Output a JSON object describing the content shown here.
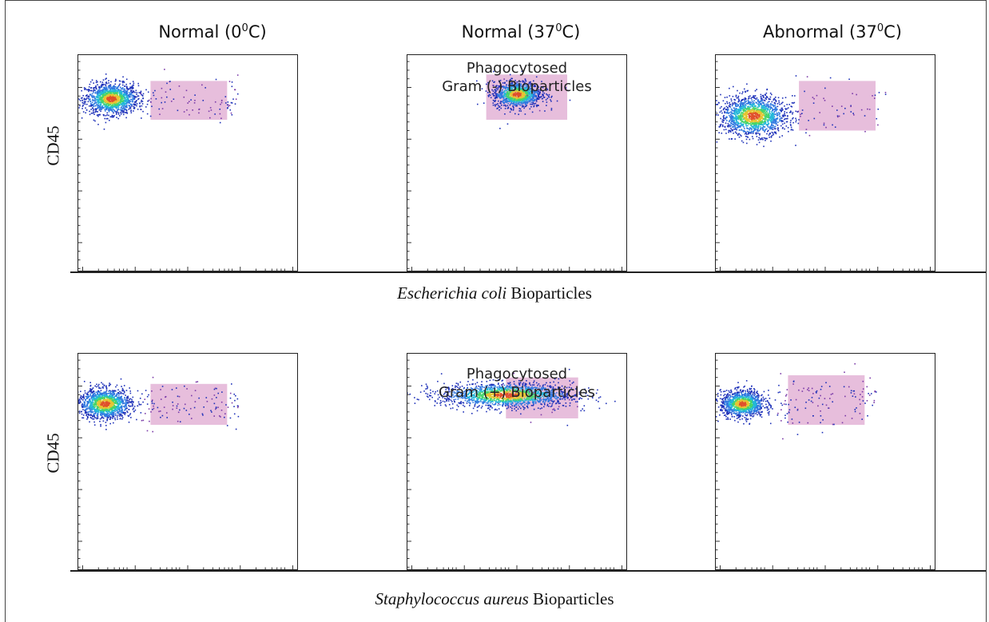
{
  "columns": [
    {
      "label": "Normal (0",
      "sup": "0",
      "tail": "C)"
    },
    {
      "label": "Normal (37",
      "sup": "0",
      "tail": "C)"
    },
    {
      "label": "Abnormal (37",
      "sup": "0",
      "tail": "C)"
    }
  ],
  "y_axis_label": "CD45",
  "rows": [
    {
      "x_label_italic": "Escherichia coli",
      "x_label_plain": " Bioparticles",
      "annotation_line1": "Phagocytosed",
      "annotation_line2": "Gram (-) Bioparticles"
    },
    {
      "x_label_italic": "Staphylococcus aureus",
      "x_label_plain": " Bioparticles",
      "annotation_line1": "Phagocytosed",
      "annotation_line2": "Gram (+) Bioparticles"
    }
  ],
  "chart_data": {
    "type": "scatter",
    "ylabel": "CD45",
    "xlim": [
      0,
      1
    ],
    "ylim": [
      0,
      1
    ],
    "gate_color": "#e3b3d6",
    "density_colors": [
      "#1c2fb8",
      "#2f78e0",
      "#23b7d9",
      "#45d46a",
      "#e6c532",
      "#e0502a"
    ],
    "panels": [
      {
        "row": 0,
        "col": 0,
        "cluster": {
          "cx": 0.15,
          "cy": 0.8,
          "sx": 0.06,
          "sy": 0.035,
          "n": 1400
        },
        "tail_points": 90,
        "gate": [
          0.33,
          0.68,
          0.7,
          0.88
        ]
      },
      {
        "row": 0,
        "col": 1,
        "cluster": {
          "cx": 0.5,
          "cy": 0.82,
          "sx": 0.055,
          "sy": 0.03,
          "n": 1100
        },
        "tail_points": 15,
        "gate": [
          0.36,
          0.73,
          0.7,
          0.91
        ]
      },
      {
        "row": 0,
        "col": 2,
        "cluster": {
          "cx": 0.17,
          "cy": 0.72,
          "sx": 0.075,
          "sy": 0.045,
          "n": 1600
        },
        "tail_points": 60,
        "gate": [
          0.38,
          0.73,
          0.65,
          0.88
        ]
      },
      {
        "row": 1,
        "col": 0,
        "cluster": {
          "cx": 0.12,
          "cy": 0.77,
          "sx": 0.06,
          "sy": 0.035,
          "n": 1400
        },
        "tail_points": 110,
        "gate": [
          0.33,
          0.68,
          0.67,
          0.86
        ]
      },
      {
        "row": 1,
        "col": 1,
        "cluster": {
          "cx": 0.45,
          "cy": 0.81,
          "sx": 0.15,
          "sy": 0.028,
          "n": 1700
        },
        "tail_points": 30,
        "gate": [
          0.45,
          0.78,
          0.7,
          0.89
        ]
      },
      {
        "row": 1,
        "col": 2,
        "cluster": {
          "cx": 0.12,
          "cy": 0.77,
          "sx": 0.05,
          "sy": 0.03,
          "n": 1200
        },
        "tail_points": 120,
        "gate": [
          0.33,
          0.68,
          0.67,
          0.9
        ]
      }
    ]
  }
}
